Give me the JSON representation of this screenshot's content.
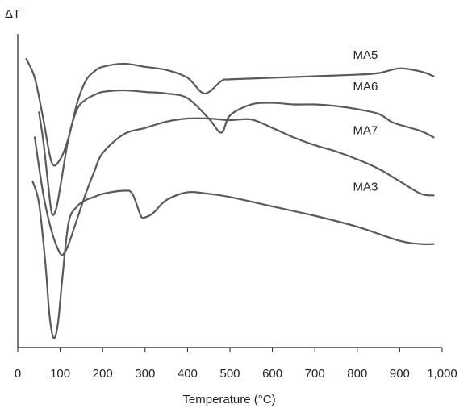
{
  "chart_data": {
    "type": "line",
    "ylabel": "ΔT",
    "xlabel": "Temperature (°C)",
    "x_ticks": [
      0,
      100,
      200,
      300,
      400,
      500,
      600,
      700,
      800,
      900,
      1000
    ],
    "x_tick_labels": [
      "0",
      "100",
      "200",
      "300",
      "400",
      "500",
      "600",
      "700",
      "800",
      "900",
      "1,000"
    ],
    "xlim": [
      0,
      1000
    ],
    "ylim": [
      0,
      100
    ],
    "grid": false,
    "legend": "inline",
    "colors": {
      "line": "#5a5a5a",
      "axis": "#222222",
      "text": "#222222"
    },
    "series": [
      {
        "name": "MA5",
        "x": [
          20,
          40,
          60,
          80,
          100,
          120,
          140,
          160,
          180,
          200,
          250,
          300,
          350,
          400,
          440,
          480,
          500,
          600,
          700,
          800,
          850,
          900,
          950,
          980
        ],
        "y": [
          92,
          86,
          73,
          59,
          60,
          67,
          78,
          85,
          88,
          89.5,
          90.5,
          89.5,
          88.5,
          86,
          81,
          85,
          85.5,
          86,
          86.5,
          87,
          87.5,
          89,
          88,
          86.5
        ],
        "label_at": [
          790,
          92
        ]
      },
      {
        "name": "MA6",
        "x": [
          50,
          60,
          70,
          80,
          90,
          100,
          120,
          140,
          160,
          180,
          200,
          250,
          300,
          350,
          400,
          450,
          480,
          500,
          550,
          600,
          650,
          700,
          750,
          800,
          850,
          880,
          900,
          950,
          980
        ],
        "y": [
          75,
          66,
          54,
          43,
          44,
          51,
          67,
          76,
          79,
          80.5,
          81.5,
          82,
          81.5,
          81,
          79.5,
          73,
          68.5,
          74,
          77.5,
          78,
          77.5,
          77.5,
          77,
          76,
          74.5,
          72,
          71,
          69,
          67
        ],
        "label_at": [
          790,
          82
        ]
      },
      {
        "name": "MA7",
        "x": [
          40,
          60,
          80,
          100,
          110,
          120,
          140,
          160,
          180,
          200,
          250,
          300,
          350,
          400,
          450,
          500,
          550,
          600,
          650,
          700,
          750,
          800,
          850,
          900,
          950,
          980
        ],
        "y": [
          67,
          49,
          37,
          30,
          30.2,
          33,
          41,
          49,
          56,
          62,
          68,
          70,
          72,
          73,
          73,
          72.5,
          72.7,
          70,
          67,
          64.5,
          62.5,
          60,
          57,
          53,
          49,
          48.5
        ],
        "label_at": [
          790,
          68
        ]
      },
      {
        "name": "MA3",
        "x": [
          35,
          50,
          65,
          75,
          85,
          95,
          105,
          120,
          140,
          160,
          180,
          200,
          250,
          270,
          290,
          300,
          320,
          350,
          400,
          450,
          500,
          600,
          700,
          800,
          900,
          950,
          980
        ],
        "y": [
          53,
          46,
          27,
          10,
          3,
          8,
          22,
          40,
          45,
          47,
          48,
          49,
          50,
          49,
          42,
          41.5,
          43,
          47,
          49.5,
          49,
          48,
          45,
          42,
          38.5,
          34,
          33,
          33
        ],
        "label_at": [
          790,
          50
        ]
      }
    ]
  }
}
